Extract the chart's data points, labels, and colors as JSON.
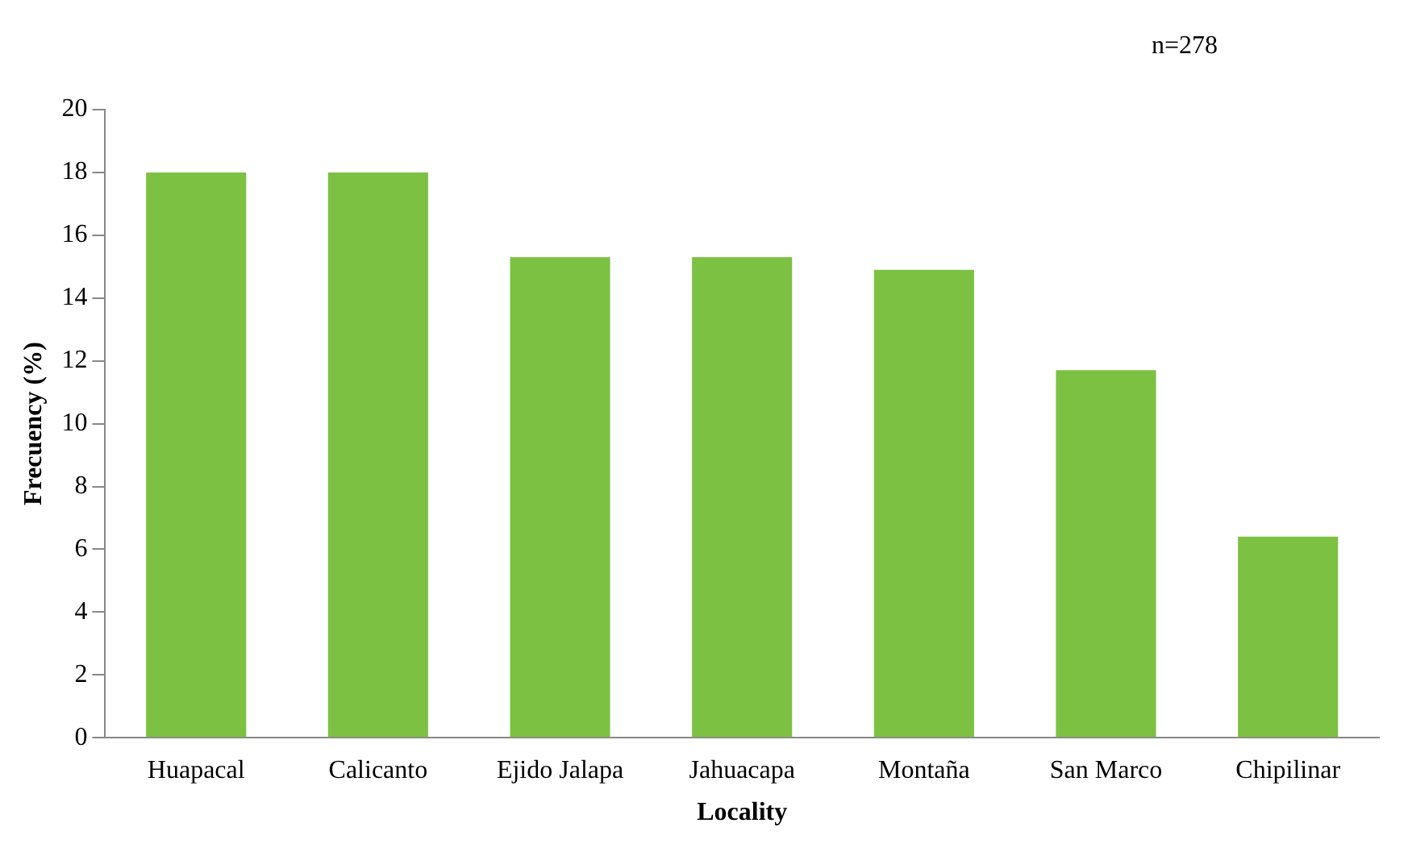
{
  "chart_data": {
    "type": "bar",
    "xlabel": "Locality",
    "ylabel": "Frecuency (%)",
    "annotations": [
      "n=278"
    ],
    "categories": [
      "Huapacal",
      "Calicanto",
      "Ejido Jalapa",
      "Jahuacapa",
      "Montaña",
      "San Marco",
      "Chipilinar"
    ],
    "values": [
      18.0,
      18.0,
      15.3,
      15.3,
      14.9,
      11.7,
      6.4
    ],
    "color": "#7dc143",
    "ylim": [
      0,
      20
    ],
    "yticks": [
      0,
      2,
      4,
      6,
      8,
      10,
      12,
      14,
      16,
      18,
      20
    ],
    "grid": false,
    "legend": false
  }
}
